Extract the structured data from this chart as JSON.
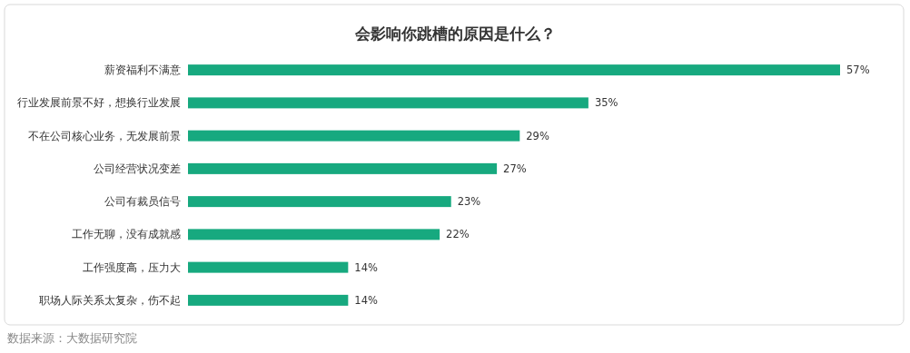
{
  "chart_data": {
    "type": "bar",
    "orientation": "horizontal",
    "title": "会影响你跳槽的原因是什么？",
    "categories": [
      "薪资福利不满意",
      "行业发展前景不好，想换行业发展",
      "不在公司核心业务，无发展前景",
      "公司经营状况变差",
      "公司有裁员信号",
      "工作无聊，没有成就感",
      "工作强度高，压力大",
      "职场人际关系太复杂，伤不起"
    ],
    "values": [
      57,
      35,
      29,
      27,
      23,
      22,
      14,
      14
    ],
    "value_labels": [
      "57%",
      "35%",
      "29%",
      "27%",
      "23%",
      "22%",
      "14%",
      "14%"
    ],
    "color": "#17a97f",
    "annotations": [
      "数据来源：大数据研究院"
    ]
  }
}
